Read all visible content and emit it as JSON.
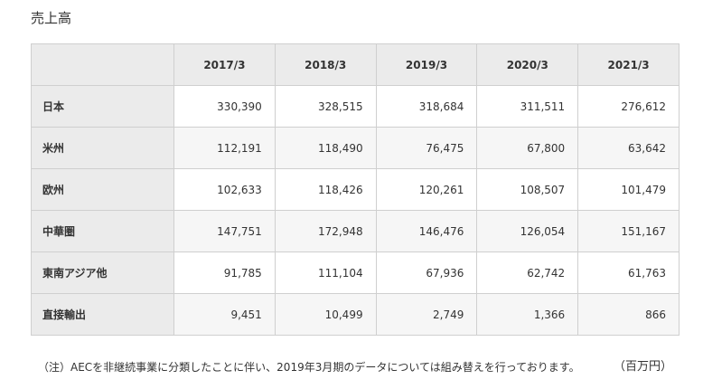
{
  "title": "売上高",
  "table": {
    "columns": [
      "2017/3",
      "2018/3",
      "2019/3",
      "2020/3",
      "2021/3"
    ],
    "rows": [
      {
        "label": "日本",
        "values": [
          "330,390",
          "328,515",
          "318,684",
          "311,511",
          "276,612"
        ]
      },
      {
        "label": "米州",
        "values": [
          "112,191",
          "118,490",
          "76,475",
          "67,800",
          "63,642"
        ]
      },
      {
        "label": "欧州",
        "values": [
          "102,633",
          "118,426",
          "120,261",
          "108,507",
          "101,479"
        ]
      },
      {
        "label": "中華圏",
        "values": [
          "147,751",
          "172,948",
          "146,476",
          "126,054",
          "151,167"
        ]
      },
      {
        "label": "東南アジア他",
        "values": [
          "91,785",
          "111,104",
          "67,936",
          "62,742",
          "61,763"
        ]
      },
      {
        "label": "直接輸出",
        "values": [
          "9,451",
          "10,499",
          "2,749",
          "1,366",
          "866"
        ]
      }
    ]
  },
  "note": "（注）AECを非継続事業に分類したことに伴い、2019年3月期のデータについては組み替えを行っております。",
  "unit": "（百万円）"
}
